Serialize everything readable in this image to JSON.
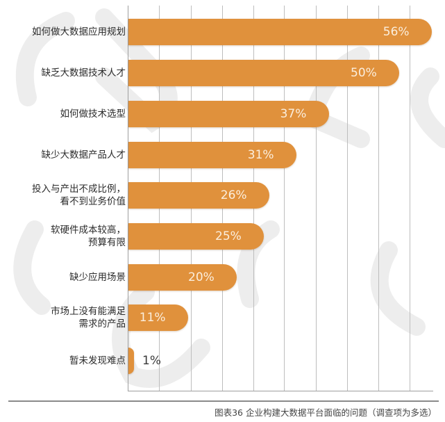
{
  "chart_data": {
    "type": "bar",
    "orientation": "horizontal",
    "title": "图表36 企业构建大数据平台面临的问题（调查项为多选）",
    "xlabel": "",
    "ylabel": "",
    "xlim": [
      0,
      56
    ],
    "grid": true,
    "legend": null,
    "categories": [
      "如何做大数据应用规划",
      "缺乏大数据技术人才",
      "如何做技术选型",
      "缺少大数据产品人才",
      "投入与产出不成比例，看不到业务价值",
      "软硬件成本较高，预算有限",
      "缺少应用场景",
      "市场上没有能满足需求的产品",
      "暂未发现难点"
    ],
    "values": [
      56,
      50,
      37,
      31,
      26,
      25,
      20,
      11,
      1
    ],
    "unit": "%",
    "bar_color": "#e0913c"
  },
  "rows": [
    {
      "label_lines": [
        "如何做大数据应用规划"
      ],
      "value_label": "56%"
    },
    {
      "label_lines": [
        "缺乏大数据技术人才"
      ],
      "value_label": "50%"
    },
    {
      "label_lines": [
        "如何做技术选型"
      ],
      "value_label": "37%"
    },
    {
      "label_lines": [
        "缺少大数据产品人才"
      ],
      "value_label": "31%"
    },
    {
      "label_lines": [
        "投入与产出不成比例，",
        "看不到业务价值"
      ],
      "value_label": "26%"
    },
    {
      "label_lines": [
        "软硬件成本较高，",
        "预算有限"
      ],
      "value_label": "25%"
    },
    {
      "label_lines": [
        "缺少应用场景"
      ],
      "value_label": "20%"
    },
    {
      "label_lines": [
        "市场上没有能满足",
        "需求的产品"
      ],
      "value_label": "11%"
    },
    {
      "label_lines": [
        "暂未发现难点"
      ],
      "value_label": "1%"
    }
  ],
  "caption": "图表36 企业构建大数据平台面临的问题（调查项为多选）",
  "watermark": "CSDN",
  "colors": {
    "bar": "#e0913c",
    "value_text_inside": "#fbeedd",
    "value_text_outside": "#3a3a3a",
    "grid": "#bdbdbd"
  }
}
